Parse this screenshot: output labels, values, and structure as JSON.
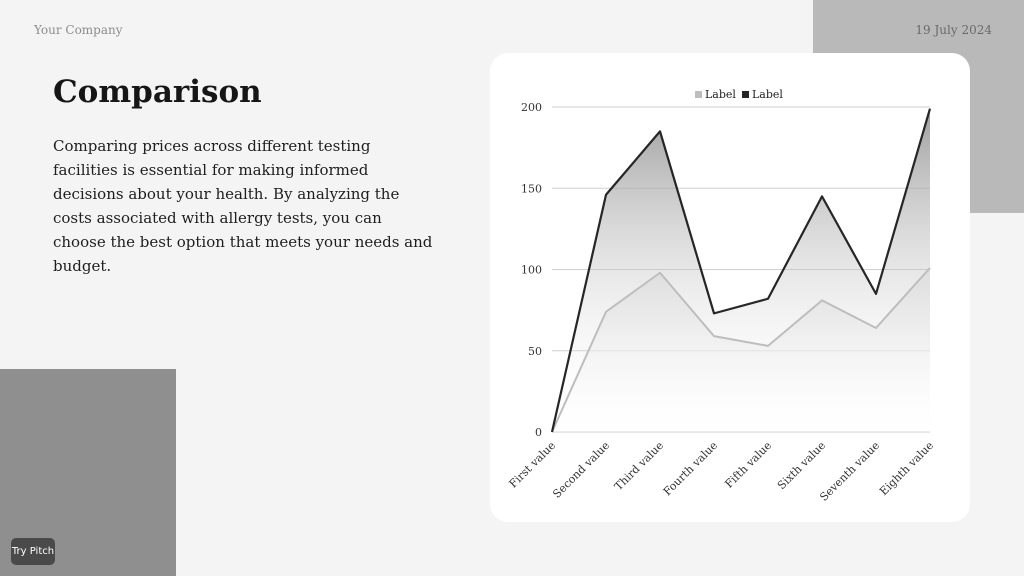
{
  "header": {
    "company": "Your Company",
    "date": "19 July 2024"
  },
  "slide": {
    "title": "Comparison",
    "body": "Comparing prices across different testing facilities is essential for making informed decisions about your health. By analyzing the costs associated with allergy tests, you can choose the best option that meets your needs and budget."
  },
  "badge": {
    "label": "Try Pitch"
  },
  "chart_data": {
    "type": "area",
    "title": "",
    "xlabel": "",
    "ylabel": "",
    "categories": [
      "First value",
      "Second value",
      "Third value",
      "Fourth value",
      "Fifth value",
      "Sixth value",
      "Seventh value",
      "Eighth value"
    ],
    "series": [
      {
        "name": "Label",
        "values": [
          0,
          74,
          98,
          59,
          53,
          81,
          64,
          101
        ],
        "color": "#bdbdbd"
      },
      {
        "name": "Label",
        "values": [
          0,
          146,
          185,
          73,
          82,
          145,
          85,
          199
        ],
        "color": "#262626"
      }
    ],
    "ylim": [
      0,
      200
    ],
    "yticks": [
      0,
      50,
      100,
      150,
      200
    ],
    "grid": true,
    "legend": "top-center"
  },
  "colors": {
    "background": "#f4f4f4",
    "accent_light": "#b9b9b9",
    "accent_dark": "#8f8f8f",
    "card": "#ffffff"
  }
}
